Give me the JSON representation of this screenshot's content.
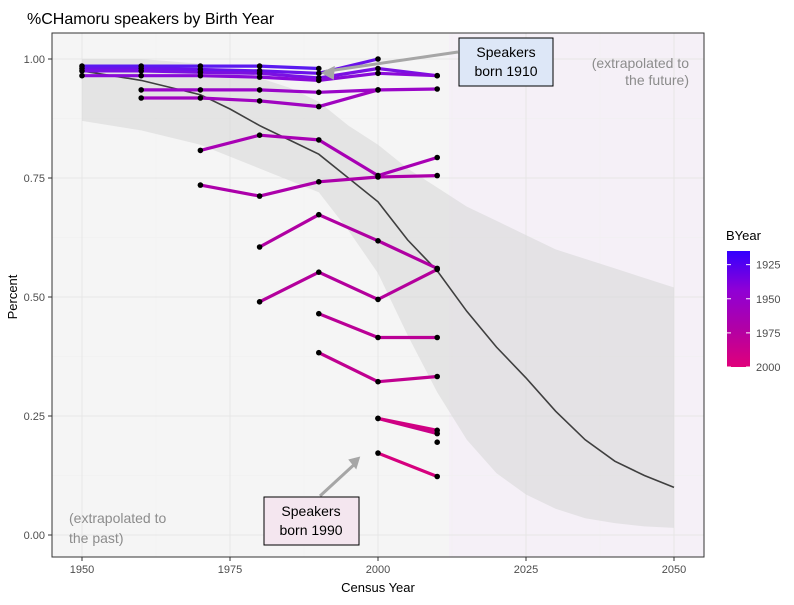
{
  "chart_data": {
    "type": "line",
    "title": "%CHamoru speakers by Birth Year",
    "xlabel": "Census Year",
    "ylabel": "Percent",
    "xlim": [
      1950,
      2050
    ],
    "ylim": [
      0,
      1
    ],
    "x_ticks": [
      1950,
      1975,
      2000,
      2025,
      2050
    ],
    "y_ticks": [
      0.0,
      0.25,
      0.5,
      0.75,
      1.0
    ],
    "y_tick_labels": [
      "0.00",
      "0.25",
      "0.50",
      "0.75",
      "1.00"
    ],
    "grid": true,
    "legend": {
      "title": "BYear",
      "position": "right",
      "labels": [
        "1925",
        "1950",
        "1975",
        "2000"
      ],
      "colors": [
        "#3300ff",
        "#8f00d6",
        "#b100a6",
        "#e0007a"
      ]
    },
    "extrapolated_regions": [
      {
        "x_range": [
          1950,
          2012
        ],
        "label": "(extrapolated to the past)",
        "color": "#f5f5f5"
      },
      {
        "x_range": [
          2012,
          2050
        ],
        "label": "(extrapolated to the future)",
        "color": "#f5f0f7"
      }
    ],
    "annotations": [
      {
        "text": "Speakers born 1910",
        "lines": [
          "Speakers",
          "born 1910"
        ],
        "box_color": "#dde7f7",
        "arrow_to": [
          1990,
          0.98
        ]
      },
      {
        "text": "Speakers born 1990",
        "lines": [
          "Speakers",
          "born 1990"
        ],
        "box_color": "#f4e6ef",
        "arrow_to": [
          1997,
          0.165
        ]
      }
    ],
    "trend": {
      "name": "fit",
      "x": [
        1950,
        1960,
        1970,
        1975,
        1980,
        1985,
        1990,
        1995,
        2000,
        2005,
        2010,
        2015,
        2020,
        2025,
        2030,
        2035,
        2040,
        2045,
        2050
      ],
      "y": [
        0.975,
        0.955,
        0.925,
        0.895,
        0.86,
        0.83,
        0.8,
        0.75,
        0.7,
        0.62,
        0.555,
        0.47,
        0.395,
        0.33,
        0.26,
        0.2,
        0.155,
        0.125,
        0.1
      ],
      "ci_low": [
        0.87,
        0.85,
        0.82,
        0.795,
        0.77,
        0.745,
        0.72,
        0.64,
        0.55,
        0.42,
        0.3,
        0.2,
        0.13,
        0.085,
        0.055,
        0.035,
        0.025,
        0.018,
        0.015
      ],
      "ci_high": [
        1.0,
        1.0,
        0.99,
        0.97,
        0.96,
        0.94,
        0.91,
        0.86,
        0.82,
        0.77,
        0.73,
        0.69,
        0.66,
        0.63,
        0.6,
        0.58,
        0.56,
        0.54,
        0.52
      ]
    },
    "series": [
      {
        "color": "#5a1af0",
        "x": [
          1950,
          1960,
          1970,
          1980,
          1990
        ],
        "y": [
          0.985,
          0.985,
          0.985,
          0.985,
          0.98
        ]
      },
      {
        "color": "#6a12ea",
        "x": [
          1950,
          1960,
          1970,
          1980,
          1990,
          2000
        ],
        "y": [
          0.98,
          0.98,
          0.978,
          0.975,
          0.97,
          1.0
        ]
      },
      {
        "color": "#7a10e2",
        "x": [
          1950,
          1960,
          1970,
          1980,
          1990,
          2000,
          2010
        ],
        "y": [
          0.975,
          0.975,
          0.972,
          0.97,
          0.96,
          0.98,
          0.965
        ]
      },
      {
        "color": "#8a0ad8",
        "x": [
          1950,
          1960,
          1970,
          1980,
          1990,
          2000,
          2010
        ],
        "y": [
          0.965,
          0.965,
          0.965,
          0.962,
          0.955,
          0.97,
          0.965
        ]
      },
      {
        "color": "#9a06c8",
        "x": [
          1960,
          1970,
          1980,
          1990,
          2000,
          2010
        ],
        "y": [
          0.935,
          0.935,
          0.935,
          0.93,
          0.935,
          0.937
        ]
      },
      {
        "color": "#a004c0",
        "x": [
          1960,
          1970,
          1980,
          1990,
          2000
        ],
        "y": [
          0.918,
          0.918,
          0.912,
          0.9,
          0.935
        ]
      },
      {
        "color": "#a800b4",
        "x": [
          1970,
          1980,
          1990,
          2000,
          2010
        ],
        "y": [
          0.808,
          0.84,
          0.83,
          0.755,
          0.793
        ]
      },
      {
        "color": "#ac00aa",
        "x": [
          1970,
          1980,
          1990,
          2000,
          2010
        ],
        "y": [
          0.735,
          0.712,
          0.742,
          0.752,
          0.755
        ]
      },
      {
        "color": "#b000a2",
        "x": [
          1980,
          1990,
          2000,
          2010
        ],
        "y": [
          0.605,
          0.673,
          0.618,
          0.56
        ]
      },
      {
        "color": "#b4009c",
        "x": [
          1980,
          1990,
          2000,
          2010
        ],
        "y": [
          0.49,
          0.552,
          0.495,
          0.558
        ]
      },
      {
        "color": "#ba0096",
        "x": [
          1990,
          2000,
          2010
        ],
        "y": [
          0.465,
          0.415,
          0.415
        ]
      },
      {
        "color": "#c00090",
        "x": [
          1990,
          2000,
          2010
        ],
        "y": [
          0.383,
          0.322,
          0.333
        ]
      },
      {
        "color": "#ca0088",
        "x": [
          2000,
          2010
        ],
        "y": [
          0.245,
          0.213
        ]
      },
      {
        "color": "#d00082",
        "x": [
          2000,
          2010
        ],
        "y": [
          0.245,
          0.22
        ]
      },
      {
        "color": "#d6007e",
        "x": [
          2000,
          2010
        ],
        "y": [
          0.172,
          0.123
        ]
      },
      {
        "color": "#dc007a",
        "x": [
          2010
        ],
        "y": [
          0.195
        ]
      }
    ]
  }
}
